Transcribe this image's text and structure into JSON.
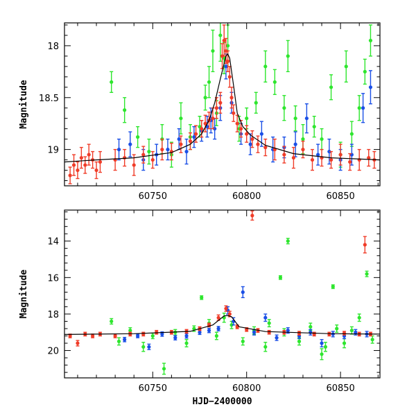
{
  "chart_data": [
    {
      "type": "scatter",
      "panel": "top",
      "title": "",
      "xlabel": "",
      "ylabel": "Magnitude",
      "xlim": [
        60703,
        60871
      ],
      "ylim": [
        19.35,
        17.78
      ],
      "y_inverted": true,
      "x_ticks": [
        60750,
        60800,
        60850
      ],
      "y_ticks": [
        18,
        18.5,
        19
      ],
      "grid": false,
      "colors": {
        "green": "#2ee62e",
        "blue": "#1a4fe6",
        "red": "#f03c28",
        "model": "#000000"
      },
      "model_curve": {
        "x": [
          60703,
          60720,
          60740,
          60760,
          60770,
          60776,
          60780,
          60783,
          60786,
          60789,
          60790,
          60791,
          60793,
          60795,
          60798,
          60802,
          60810,
          60825,
          60845,
          60871
        ],
        "y": [
          19.12,
          19.1,
          19.08,
          19.03,
          18.95,
          18.85,
          18.72,
          18.55,
          18.32,
          18.1,
          18.08,
          18.12,
          18.38,
          18.65,
          18.78,
          18.86,
          18.96,
          19.04,
          19.08,
          19.1
        ]
      },
      "series": [
        {
          "name": "",
          "color": "#2ee62e",
          "x": [
            60728,
            60735,
            60742,
            60748,
            60755,
            60760,
            60765,
            60770,
            60775,
            60778,
            60780,
            60782,
            60784,
            60786,
            60788,
            60790,
            60796,
            60800,
            60805,
            60810,
            60815,
            60820,
            60822,
            60826,
            60830,
            60836,
            60840,
            60845,
            60850,
            60853,
            60856,
            60860,
            60863,
            60866
          ],
          "y": [
            18.35,
            18.62,
            18.88,
            19.02,
            18.9,
            19.05,
            18.7,
            18.88,
            18.78,
            18.5,
            18.35,
            18.05,
            18.65,
            17.9,
            18.12,
            18.0,
            18.8,
            18.7,
            18.55,
            18.2,
            18.35,
            18.6,
            18.1,
            18.7,
            18.9,
            18.78,
            18.9,
            18.4,
            19.05,
            18.2,
            18.85,
            18.6,
            18.25,
            17.95
          ],
          "yerr": [
            0.1,
            0.12,
            0.1,
            0.12,
            0.14,
            0.12,
            0.15,
            0.12,
            0.1,
            0.12,
            0.15,
            0.2,
            0.12,
            0.25,
            0.15,
            0.2,
            0.12,
            0.1,
            0.1,
            0.15,
            0.12,
            0.12,
            0.15,
            0.12,
            0.14,
            0.1,
            0.1,
            0.12,
            0.12,
            0.15,
            0.12,
            0.12,
            0.12,
            0.15
          ]
        },
        {
          "name": "",
          "color": "#1a4fe6",
          "x": [
            60732,
            60738,
            60745,
            60752,
            60758,
            60764,
            60768,
            60772,
            60776,
            60779,
            60781,
            60783,
            60786,
            60789,
            60792,
            60797,
            60802,
            60808,
            60814,
            60820,
            60826,
            60832,
            60838,
            60844,
            60850,
            60856,
            60862,
            60866
          ],
          "y": [
            19.0,
            18.95,
            19.1,
            19.05,
            19.0,
            18.9,
            19.02,
            18.88,
            18.82,
            18.78,
            18.72,
            18.8,
            18.6,
            18.2,
            18.55,
            18.85,
            18.95,
            18.85,
            19.0,
            18.98,
            18.95,
            18.7,
            19.05,
            19.02,
            19.1,
            19.05,
            18.6,
            18.4
          ],
          "yerr": [
            0.1,
            0.12,
            0.1,
            0.1,
            0.1,
            0.1,
            0.12,
            0.1,
            0.1,
            0.1,
            0.12,
            0.1,
            0.12,
            0.12,
            0.1,
            0.1,
            0.1,
            0.12,
            0.12,
            0.1,
            0.12,
            0.14,
            0.1,
            0.12,
            0.1,
            0.1,
            0.14,
            0.16
          ]
        },
        {
          "name": "",
          "color": "#f03c28",
          "x": [
            60706,
            60708,
            60710,
            60712,
            60714,
            60716,
            60718,
            60720,
            60722,
            60730,
            60735,
            60740,
            60745,
            60750,
            60755,
            60760,
            60765,
            60770,
            60773,
            60776,
            60778,
            60780,
            60782,
            60784,
            60786,
            60787,
            60788,
            60789,
            60790,
            60791,
            60792,
            60793,
            60795,
            60797,
            60800,
            60803,
            60806,
            60810,
            60815,
            60820,
            60825,
            60830,
            60835,
            60840,
            60845,
            60850,
            60855,
            60860,
            60865,
            60868
          ],
          "y": [
            19.25,
            19.15,
            19.2,
            19.08,
            19.15,
            19.05,
            19.1,
            19.2,
            19.12,
            19.1,
            19.08,
            19.15,
            19.05,
            19.1,
            19.0,
            19.02,
            18.95,
            18.92,
            18.85,
            18.8,
            18.75,
            18.72,
            18.7,
            18.6,
            18.55,
            18.1,
            17.95,
            18.05,
            18.15,
            18.3,
            18.5,
            18.65,
            18.75,
            18.8,
            18.85,
            18.9,
            18.95,
            18.98,
            19.0,
            19.05,
            19.08,
            19.0,
            19.1,
            19.08,
            19.1,
            19.05,
            19.12,
            19.1,
            19.08,
            19.1
          ],
          "yerr": [
            0.08,
            0.1,
            0.08,
            0.1,
            0.08,
            0.1,
            0.08,
            0.08,
            0.1,
            0.1,
            0.08,
            0.1,
            0.08,
            0.08,
            0.1,
            0.08,
            0.08,
            0.08,
            0.08,
            0.08,
            0.08,
            0.08,
            0.1,
            0.1,
            0.1,
            0.12,
            0.15,
            0.12,
            0.1,
            0.1,
            0.1,
            0.08,
            0.08,
            0.08,
            0.08,
            0.08,
            0.08,
            0.08,
            0.1,
            0.08,
            0.1,
            0.08,
            0.1,
            0.08,
            0.08,
            0.1,
            0.08,
            0.1,
            0.08,
            0.08
          ]
        }
      ]
    },
    {
      "type": "scatter",
      "panel": "bottom",
      "title": "",
      "xlabel": "HJD−2400000",
      "ylabel": "Magnitude",
      "xlim": [
        60703,
        60871
      ],
      "ylim": [
        21.5,
        12.3
      ],
      "y_inverted": true,
      "x_ticks": [
        60750,
        60800,
        60850
      ],
      "y_ticks": [
        14,
        16,
        18,
        20
      ],
      "grid": false,
      "colors": {
        "green": "#2ee62e",
        "blue": "#1a4fe6",
        "red": "#f03c28",
        "model": "#000000"
      },
      "model_curve": {
        "x": [
          60703,
          60740,
          60770,
          60782,
          60788,
          60790,
          60792,
          60796,
          60810,
          60845,
          60871
        ],
        "y": [
          19.12,
          19.08,
          18.95,
          18.6,
          18.1,
          18.08,
          18.15,
          18.7,
          18.96,
          19.08,
          19.1
        ]
      },
      "series": [
        {
          "name": "",
          "color": "#2ee62e",
          "x": [
            60728,
            60732,
            60738,
            60745,
            60750,
            60756,
            60762,
            60768,
            60772,
            60776,
            60780,
            60784,
            60788,
            60792,
            60798,
            60804,
            60810,
            60812,
            60818,
            60820,
            60822,
            60828,
            60834,
            60840,
            60842,
            60846,
            60848,
            60852,
            60856,
            60860,
            60864,
            60867
          ],
          "y": [
            18.4,
            19.5,
            18.9,
            19.8,
            19.2,
            21.0,
            19.0,
            19.6,
            18.8,
            17.1,
            18.5,
            19.2,
            18.2,
            18.6,
            19.5,
            18.9,
            19.8,
            18.5,
            16.0,
            19.0,
            14.0,
            19.5,
            18.7,
            20.2,
            19.8,
            16.5,
            18.8,
            19.6,
            18.9,
            18.2,
            15.8,
            19.4
          ],
          "yerr": [
            0.15,
            0.2,
            0.15,
            0.25,
            0.15,
            0.3,
            0.15,
            0.2,
            0.15,
            0.1,
            0.2,
            0.2,
            0.25,
            0.2,
            0.2,
            0.2,
            0.25,
            0.2,
            0.1,
            0.2,
            0.15,
            0.2,
            0.2,
            0.3,
            0.25,
            0.1,
            0.2,
            0.25,
            0.2,
            0.2,
            0.15,
            0.2
          ]
        },
        {
          "name": "",
          "color": "#1a4fe6",
          "x": [
            60735,
            60742,
            60748,
            60755,
            60762,
            60768,
            60775,
            60780,
            60785,
            60790,
            60793,
            60798,
            60804,
            60810,
            60816,
            60822,
            60828,
            60834,
            60840,
            60846,
            60852,
            60858,
            60864
          ],
          "y": [
            19.4,
            19.2,
            19.8,
            19.1,
            19.3,
            19.2,
            19.0,
            18.9,
            18.8,
            17.8,
            18.4,
            16.8,
            19.0,
            18.2,
            19.3,
            18.9,
            19.2,
            19.0,
            19.6,
            19.1,
            19.2,
            19.0,
            19.1
          ],
          "yerr": [
            0.12,
            0.1,
            0.15,
            0.12,
            0.12,
            0.12,
            0.12,
            0.12,
            0.12,
            0.2,
            0.2,
            0.3,
            0.15,
            0.2,
            0.15,
            0.15,
            0.15,
            0.15,
            0.2,
            0.15,
            0.15,
            0.15,
            0.15
          ]
        },
        {
          "name": "",
          "color": "#f03c28",
          "x": [
            60706,
            60710,
            60714,
            60718,
            60722,
            60730,
            60738,
            60745,
            60752,
            60760,
            60768,
            60775,
            60780,
            60785,
            60789,
            60791,
            60795,
            60800,
            60803,
            60806,
            60812,
            60820,
            60828,
            60836,
            60844,
            60852,
            60860,
            60863,
            60866
          ],
          "y": [
            19.2,
            19.6,
            19.1,
            19.2,
            19.1,
            19.2,
            19.1,
            19.1,
            19.0,
            19.0,
            18.95,
            18.8,
            18.6,
            18.2,
            17.7,
            18.0,
            18.7,
            18.85,
            12.6,
            18.9,
            19.0,
            19.0,
            19.05,
            19.1,
            19.1,
            19.05,
            19.1,
            14.2,
            19.1
          ],
          "yerr": [
            0.1,
            0.15,
            0.1,
            0.1,
            0.1,
            0.1,
            0.1,
            0.1,
            0.1,
            0.1,
            0.1,
            0.1,
            0.1,
            0.15,
            0.15,
            0.15,
            0.1,
            0.1,
            0.25,
            0.1,
            0.1,
            0.1,
            0.1,
            0.1,
            0.1,
            0.1,
            0.1,
            0.45,
            0.1
          ]
        }
      ]
    }
  ]
}
